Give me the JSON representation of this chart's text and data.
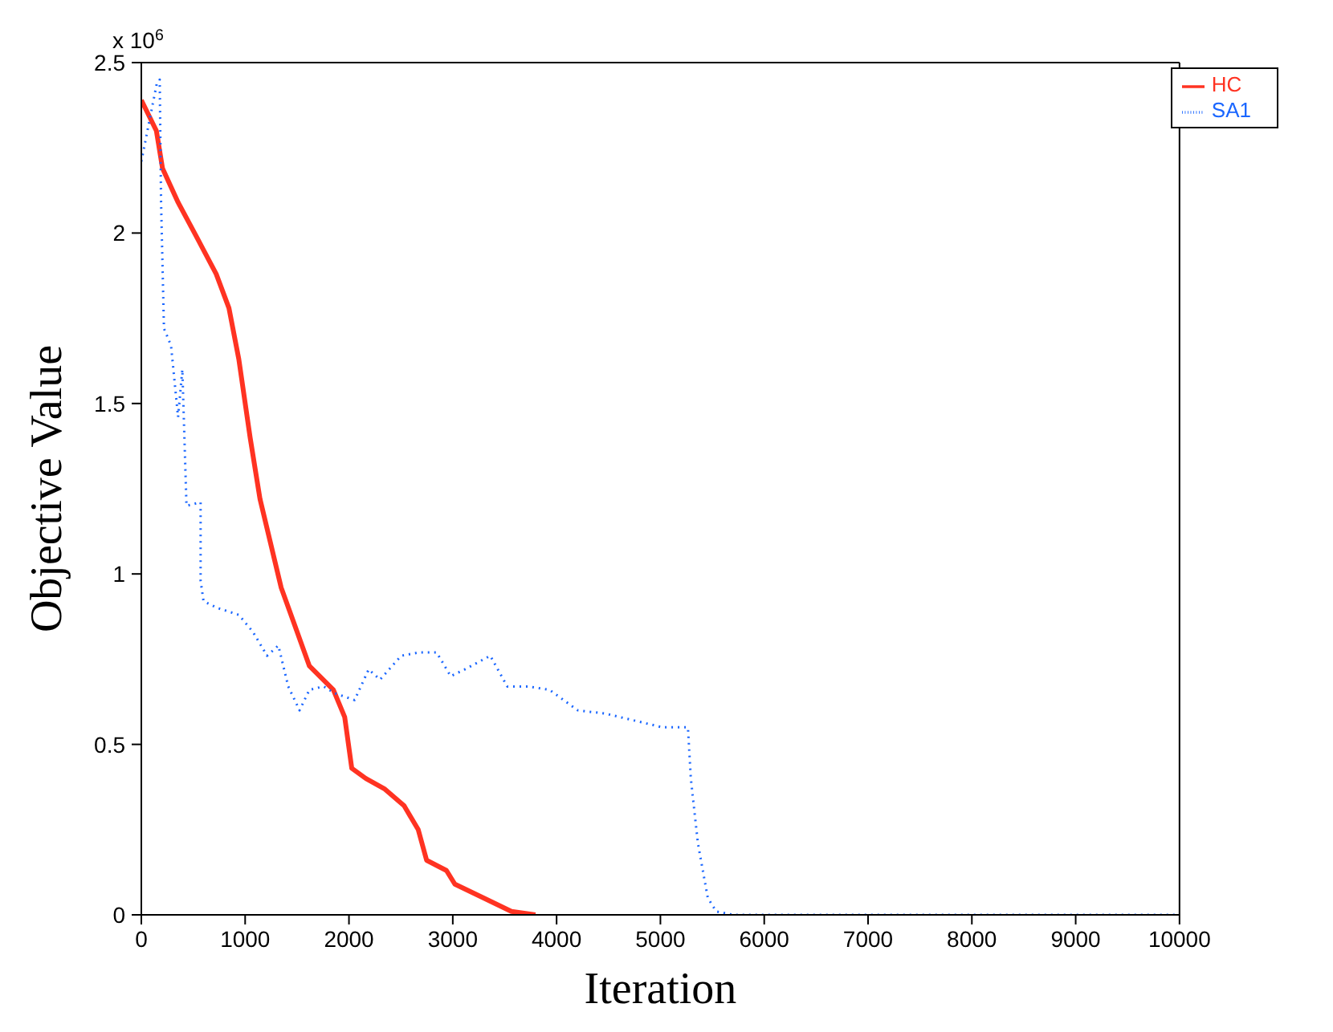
{
  "chart_data": {
    "type": "line",
    "xlabel": "Iteration",
    "ylabel": "Objective Value",
    "annotations": [
      "x 10$^{6}$"
    ],
    "xlim": [
      0,
      10000
    ],
    "xticks": [
      0,
      1000,
      2000,
      3000,
      4000,
      5000,
      6000,
      7000,
      8000,
      9000,
      10000
    ],
    "ylim": [
      0,
      2.5
    ],
    "yticks": [
      0,
      0.5,
      1,
      1.5,
      2,
      2.5
    ],
    "grid": false,
    "legend": "top right",
    "series": [
      {
        "name": "HC",
        "color": "#ff3322",
        "line_style": "solid",
        "x": [
          0,
          145,
          204,
          354,
          530,
          721,
          844,
          939,
          1048,
          1143,
          1347,
          1619,
          1850,
          1959,
          2027,
          2163,
          2340,
          2531,
          2667,
          2748,
          2939,
          3020,
          3293,
          3565,
          3796
        ],
        "values": [
          2.39,
          2.3,
          2.19,
          2.09,
          1.99,
          1.88,
          1.78,
          1.63,
          1.4,
          1.22,
          0.96,
          0.73,
          0.66,
          0.58,
          0.43,
          0.4,
          0.37,
          0.32,
          0.25,
          0.16,
          0.13,
          0.09,
          0.05,
          0.01,
          0
        ]
      },
      {
        "name": "SA1",
        "color": "#1a66ff",
        "line_style": "dotted",
        "x": [
          0,
          150,
          177,
          190,
          218,
          286,
          354,
          395,
          435,
          571,
          571,
          599,
          735,
          939,
          1075,
          1211,
          1320,
          1415,
          1524,
          1619,
          1755,
          1864,
          2054,
          2190,
          2299,
          2503,
          2680,
          2844,
          2980,
          3116,
          3361,
          3524,
          3728,
          3932,
          4204,
          4476,
          4748,
          5020,
          5265,
          5293,
          5361,
          5456,
          5537,
          5701,
          10000
        ],
        "values": [
          2.21,
          2.44,
          2.45,
          2.09,
          1.72,
          1.67,
          1.46,
          1.6,
          1.2,
          1.21,
          0.98,
          0.92,
          0.9,
          0.88,
          0.83,
          0.76,
          0.79,
          0.67,
          0.6,
          0.66,
          0.67,
          0.65,
          0.63,
          0.72,
          0.69,
          0.76,
          0.77,
          0.77,
          0.7,
          0.72,
          0.76,
          0.67,
          0.67,
          0.66,
          0.6,
          0.59,
          0.57,
          0.55,
          0.55,
          0.4,
          0.21,
          0.05,
          0.01,
          0,
          0
        ]
      }
    ]
  }
}
